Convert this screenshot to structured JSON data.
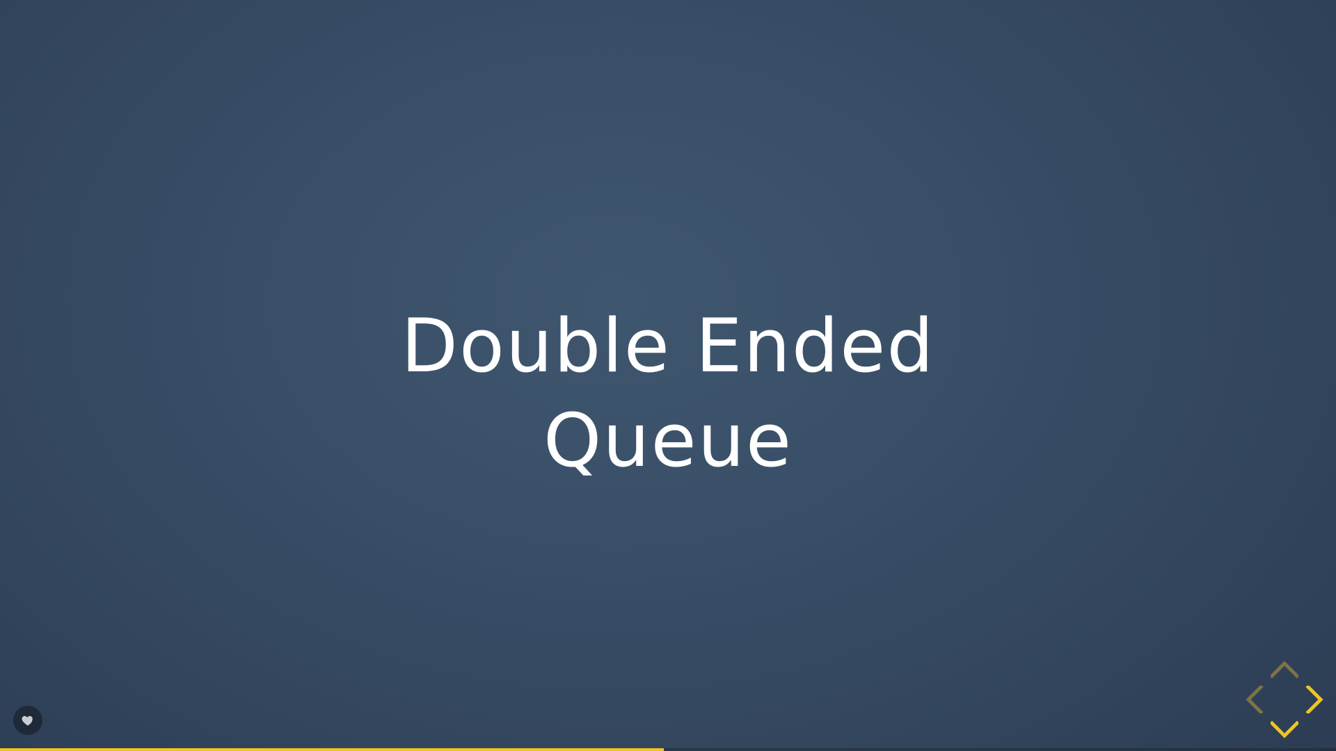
{
  "slide": {
    "title_line1": "Double Ended",
    "title_line2": "Queue"
  },
  "controls": {
    "up": {
      "icon": "chevron-up-icon",
      "enabled": false
    },
    "down": {
      "icon": "chevron-down-icon",
      "enabled": true
    },
    "left": {
      "icon": "chevron-left-icon",
      "enabled": false
    },
    "right": {
      "icon": "chevron-right-icon",
      "enabled": true
    }
  },
  "like_button": {
    "icon": "heart-icon"
  },
  "progress": {
    "fraction": 0.497
  },
  "colors": {
    "accent": "#f0c520",
    "accent_disabled": "#8a7a3a",
    "text": "#ffffff",
    "background": "#3a5068"
  }
}
